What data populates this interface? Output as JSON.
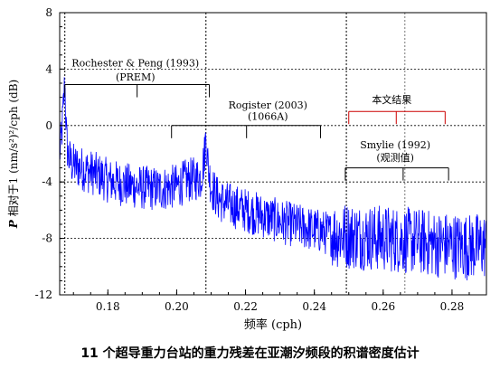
{
  "caption": "11 个超导重力台站的重力残差在亚潮汐频段的积谱密度估计",
  "chart_data": {
    "type": "line",
    "xlabel": "频率 (cph)",
    "ylabel_prefix": "P",
    "ylabel": " 相对于1 (nm/s²)²/cph (dB)",
    "xlim": [
      0.166,
      0.29
    ],
    "ylim": [
      -12,
      8
    ],
    "x_ticks": [
      0.18,
      0.2,
      0.22,
      0.24,
      0.26,
      0.28
    ],
    "x_tick_labels": [
      "0.18",
      "0.20",
      "0.22",
      "0.24",
      "0.26",
      "0.28"
    ],
    "y_ticks": [
      -12,
      -8,
      -4,
      0,
      4,
      8
    ],
    "y_tick_labels": [
      "-12",
      "-8",
      "-4",
      "0",
      "4",
      "8"
    ],
    "grid": "dashed",
    "series": [
      {
        "color": "#0000ff",
        "x": [
          0.166,
          0.1665,
          0.167,
          0.1675,
          0.168,
          0.1685,
          0.169,
          0.17,
          0.172,
          0.175,
          0.178,
          0.18,
          0.185,
          0.19,
          0.195,
          0.2,
          0.203,
          0.205,
          0.207,
          0.208,
          0.2085,
          0.209,
          0.2095,
          0.21,
          0.212,
          0.215,
          0.22,
          0.225,
          0.23,
          0.235,
          0.24,
          0.245,
          0.25,
          0.255,
          0.26,
          0.265,
          0.27,
          0.275,
          0.28,
          0.285,
          0.29
        ],
        "values": [
          -2.0,
          -1.0,
          1.0,
          3.1,
          -1.0,
          -2.2,
          -2.5,
          -2.8,
          -3.0,
          -3.3,
          -3.6,
          -3.9,
          -4.2,
          -4.4,
          -4.5,
          -4.3,
          -3.9,
          -3.8,
          -3.7,
          -2.3,
          -0.7,
          -2.5,
          -3.5,
          -4.3,
          -5.2,
          -5.6,
          -6.0,
          -6.4,
          -6.8,
          -7.1,
          -7.4,
          -7.7,
          -7.8,
          -7.9,
          -8.0,
          -8.1,
          -8.2,
          -8.4,
          -8.5,
          -8.6,
          -8.5
        ]
      }
    ],
    "vlines": [
      {
        "x": 0.1675,
        "color": "#000000"
      },
      {
        "x": 0.2085,
        "color": "#000000"
      },
      {
        "x": 0.2493,
        "color": "#000000"
      },
      {
        "x": 0.2663,
        "color": "#777777"
      }
    ],
    "annotations": [
      {
        "label": "Rochester & Peng (1993)",
        "sublabel": "(PREM)",
        "color": "#000000",
        "y": 2.9,
        "ticks": [
          0.1675,
          0.1885,
          0.2095
        ],
        "label_x": 0.188,
        "label_y": 4.2,
        "sublabel_y": 3.2
      },
      {
        "label": "Rogister (2003)",
        "sublabel": "(1066A)",
        "color": "#000000",
        "y": 0.0,
        "ticks": [
          0.1985,
          0.2203,
          0.2418
        ],
        "label_x": 0.2265,
        "label_y": 1.2,
        "sublabel_y": 0.4
      },
      {
        "label": "本文结果",
        "sublabel": "",
        "color": "#cc0000",
        "y": 1.0,
        "ticks": [
          0.25,
          0.2638,
          0.278
        ],
        "label_x": 0.2625,
        "label_y": 1.6,
        "sublabel_y": 0
      },
      {
        "label": "Smylie (1992)",
        "sublabel": "(观测值)",
        "color": "#000000",
        "y": -3.0,
        "ticks": [
          0.249,
          0.2658,
          0.279
        ],
        "label_x": 0.2635,
        "label_y": -1.6,
        "sublabel_y": -2.5
      }
    ]
  }
}
